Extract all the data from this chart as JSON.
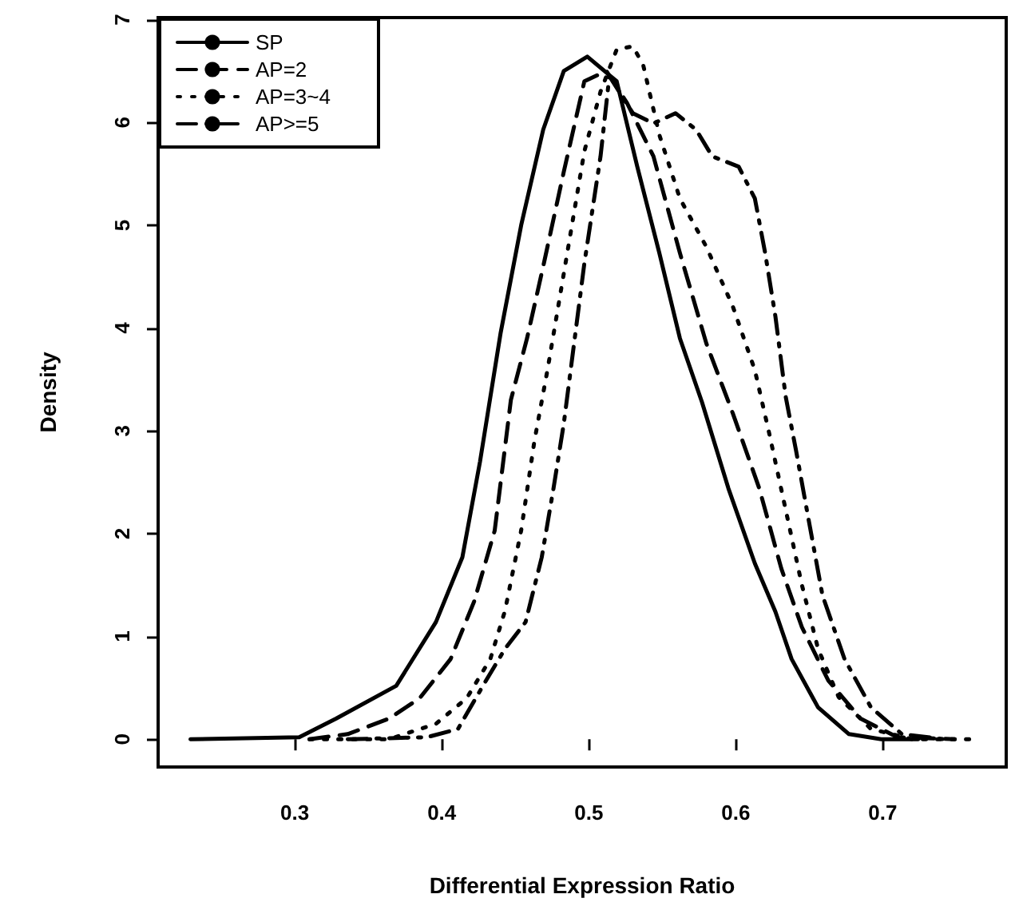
{
  "chart_data": {
    "type": "line",
    "xlabel": "Differential Expression Ratio",
    "ylabel": "Density",
    "xlim": [
      0.207,
      0.784
    ],
    "ylim": [
      -0.27,
      7.02
    ],
    "xticks": [
      0.3,
      0.4,
      0.5,
      0.6,
      0.7
    ],
    "yticks": [
      0,
      1,
      2,
      3,
      4,
      5,
      6,
      7
    ],
    "legend": "top left",
    "marker": "none",
    "grid": false,
    "series": [
      {
        "name": "SP",
        "color": "#000000",
        "line_style": "solid",
        "x": [
          0.229,
          0.303,
          0.328,
          0.369,
          0.396,
          0.414,
          0.426,
          0.44,
          0.454,
          0.469,
          0.483,
          0.499,
          0.519,
          0.533,
          0.548,
          0.562,
          0.577,
          0.595,
          0.613,
          0.627,
          0.638,
          0.656,
          0.677,
          0.699,
          0.724
        ],
        "values": [
          0,
          0.02,
          0.2,
          0.52,
          1.14,
          1.77,
          2.7,
          3.95,
          5.0,
          5.93,
          6.5,
          6.64,
          6.4,
          5.57,
          4.73,
          3.9,
          3.28,
          2.44,
          1.71,
          1.24,
          0.78,
          0.31,
          0.05,
          0,
          0
        ]
      },
      {
        "name": "AP=2",
        "color": "#000000",
        "line_style": "dashed",
        "x": [
          0.31,
          0.336,
          0.364,
          0.385,
          0.406,
          0.422,
          0.436,
          0.447,
          0.458,
          0.469,
          0.483,
          0.497,
          0.512,
          0.526,
          0.544,
          0.562,
          0.58,
          0.598,
          0.616,
          0.631,
          0.645,
          0.663,
          0.685,
          0.71,
          0.749
        ],
        "values": [
          0,
          0.05,
          0.2,
          0.4,
          0.78,
          1.34,
          2.03,
          3.3,
          3.9,
          4.6,
          5.52,
          6.4,
          6.5,
          6.19,
          5.67,
          4.73,
          3.85,
          3.17,
          2.44,
          1.66,
          1.09,
          0.57,
          0.2,
          0.02,
          0
        ]
      },
      {
        "name": "AP=3~4",
        "color": "#000000",
        "line_style": "dotted",
        "x": [
          0.31,
          0.364,
          0.396,
          0.417,
          0.433,
          0.443,
          0.454,
          0.463,
          0.472,
          0.483,
          0.497,
          0.508,
          0.519,
          0.53,
          0.537,
          0.548,
          0.562,
          0.58,
          0.598,
          0.613,
          0.623,
          0.634,
          0.645,
          0.656,
          0.67,
          0.692,
          0.72,
          0.762
        ],
        "values": [
          0,
          0,
          0.15,
          0.4,
          0.78,
          1.25,
          2.03,
          2.9,
          3.6,
          4.53,
          5.72,
          6.3,
          6.71,
          6.74,
          6.56,
          5.88,
          5.26,
          4.79,
          4.21,
          3.59,
          2.96,
          2.23,
          1.5,
          0.88,
          0.41,
          0.1,
          0,
          0
        ]
      },
      {
        "name": "AP>=5",
        "color": "#000000",
        "line_style": "dashdot",
        "x": [
          0.336,
          0.39,
          0.411,
          0.428,
          0.443,
          0.457,
          0.468,
          0.476,
          0.483,
          0.497,
          0.508,
          0.514,
          0.53,
          0.544,
          0.559,
          0.573,
          0.584,
          0.602,
          0.613,
          0.62,
          0.627,
          0.634,
          0.641,
          0.649,
          0.659,
          0.674,
          0.692,
          0.713,
          0.742
        ],
        "values": [
          0,
          0.02,
          0.1,
          0.52,
          0.88,
          1.14,
          1.77,
          2.44,
          3.07,
          4.63,
          5.67,
          6.45,
          6.09,
          5.99,
          6.09,
          5.93,
          5.67,
          5.57,
          5.26,
          4.73,
          4.11,
          3.33,
          2.81,
          2.18,
          1.4,
          0.78,
          0.31,
          0.05,
          0
        ]
      }
    ]
  }
}
